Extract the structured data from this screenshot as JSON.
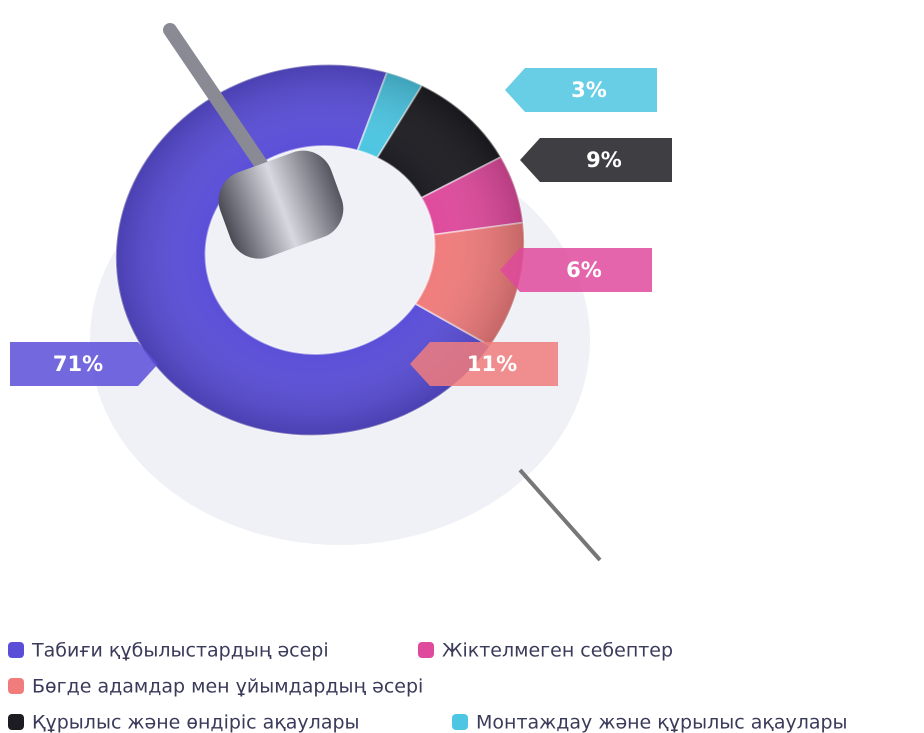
{
  "chart_data": {
    "type": "donut",
    "categories": [
      "Табиғи құбылыстардың әсері",
      "Монтаждау және құрылыс ақаулары",
      "Құрылыс және өндіріс ақаулары",
      "Жіктелмеген себептер",
      "Бөгде адамдар мен ұйымдардың әсері"
    ],
    "values": [
      71,
      3,
      9,
      6,
      11
    ],
    "value_labels": [
      "71%",
      "3%",
      "9%",
      "6%",
      "11%"
    ],
    "colors": [
      "#5a4ed8",
      "#4cc6e2",
      "#1c1c22",
      "#df4a9c",
      "#f07c7c"
    ]
  }
}
